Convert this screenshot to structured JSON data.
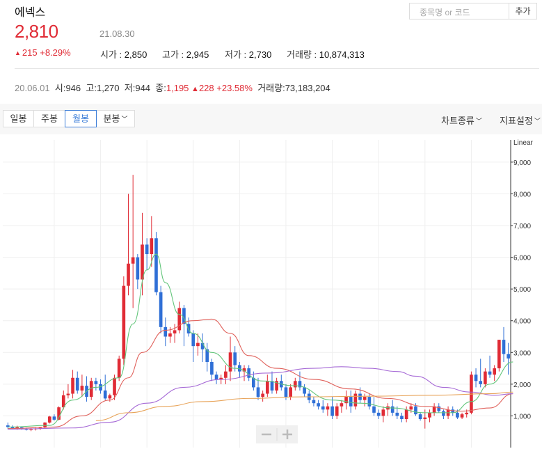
{
  "stock": {
    "name": "에넥스",
    "price": "2,810",
    "date": "21.08.30",
    "change": "215",
    "change_pct": "+8.29%",
    "stats": [
      {
        "label": "시가",
        "value": "2,850"
      },
      {
        "label": "고가",
        "value": "2,945"
      },
      {
        "label": "저가",
        "value": "2,730"
      },
      {
        "label": "거래량",
        "value": "10,874,313"
      }
    ]
  },
  "search": {
    "placeholder": "종목명 or 코드",
    "add_label": "추가"
  },
  "listing": {
    "date": "20.06.01",
    "open_label": "시",
    "open": "946",
    "high_label": "고",
    "high": "1,270",
    "low_label": "저",
    "low": "944",
    "close_label": "종",
    "close": "1,195",
    "change": "228",
    "change_pct": "+23.58%",
    "volume_label": "거래량",
    "volume": "73,183,204"
  },
  "toolbar": {
    "tabs": [
      "일봉",
      "주봉",
      "월봉",
      "분봉"
    ],
    "active_tab": "월봉",
    "chart_type_label": "차트종류",
    "indicator_label": "지표설정"
  },
  "colors": {
    "up": "#e02b35",
    "down": "#2f6fd6",
    "ma5": "#62c57a",
    "ma20": "#e0615b",
    "ma60": "#a66ad6",
    "ma120": "#e8a45a"
  },
  "chart_data": {
    "type": "candlestick",
    "scale_label": "Linear",
    "ylim": [
      0,
      9700
    ],
    "yticks": [
      "1,000",
      "2,000",
      "3,000",
      "4,000",
      "5,000",
      "6,000",
      "7,000",
      "8,000",
      "9,000"
    ],
    "ytick_values": [
      1000,
      2000,
      3000,
      4000,
      5000,
      6000,
      7000,
      8000,
      9000
    ],
    "candles": [
      [
        700,
        790,
        580,
        650
      ],
      [
        650,
        700,
        570,
        610
      ],
      [
        610,
        690,
        560,
        640
      ],
      [
        640,
        660,
        560,
        590
      ],
      [
        590,
        630,
        540,
        560
      ],
      [
        560,
        620,
        520,
        580
      ],
      [
        580,
        640,
        540,
        600
      ],
      [
        600,
        650,
        560,
        630
      ],
      [
        630,
        800,
        600,
        790
      ],
      [
        790,
        1000,
        760,
        980
      ],
      [
        980,
        1050,
        850,
        880
      ],
      [
        880,
        1300,
        860,
        1270
      ],
      [
        1270,
        1800,
        1200,
        1650
      ],
      [
        1650,
        2000,
        1550,
        1700
      ],
      [
        1700,
        2450,
        1550,
        2200
      ],
      [
        2200,
        2400,
        1700,
        1800
      ],
      [
        1800,
        2300,
        1600,
        1950
      ],
      [
        1950,
        2250,
        1450,
        1600
      ],
      [
        1600,
        2200,
        1500,
        2100
      ],
      [
        2100,
        2200,
        1800,
        2000
      ],
      [
        2000,
        2150,
        1700,
        1800
      ],
      [
        1800,
        2300,
        1500,
        1550
      ],
      [
        1550,
        1700,
        1450,
        1650
      ],
      [
        1650,
        2300,
        1500,
        2200
      ],
      [
        2200,
        2900,
        2100,
        2800
      ],
      [
        2800,
        5400,
        2600,
        5100
      ],
      [
        5100,
        8000,
        4800,
        5800
      ],
      [
        5800,
        8600,
        4400,
        6000
      ],
      [
        6000,
        6100,
        5000,
        5300
      ],
      [
        5300,
        7400,
        4800,
        6400
      ],
      [
        6400,
        6600,
        5600,
        6100
      ],
      [
        6100,
        7300,
        5700,
        6600
      ],
      [
        6600,
        6800,
        4800,
        4900
      ],
      [
        4900,
        5100,
        3600,
        3800
      ],
      [
        3800,
        4100,
        3200,
        3500
      ],
      [
        3500,
        3800,
        3300,
        3600
      ],
      [
        3600,
        3900,
        3300,
        3700
      ],
      [
        3700,
        4600,
        3600,
        4400
      ],
      [
        4400,
        4500,
        3200,
        3900
      ],
      [
        3900,
        4100,
        3500,
        3600
      ],
      [
        3600,
        3700,
        2700,
        3200
      ],
      [
        3200,
        3600,
        2900,
        3300
      ],
      [
        3300,
        3600,
        2700,
        3100
      ],
      [
        3100,
        3300,
        2400,
        2700
      ],
      [
        2700,
        2800,
        2100,
        2300
      ],
      [
        2300,
        2400,
        2000,
        2150
      ],
      [
        2150,
        2300,
        2000,
        2200
      ],
      [
        2200,
        2600,
        2000,
        2400
      ],
      [
        2400,
        3500,
        2100,
        3000
      ],
      [
        3000,
        3200,
        2400,
        2600
      ],
      [
        2600,
        2700,
        2200,
        2400
      ],
      [
        2400,
        2600,
        2100,
        2500
      ],
      [
        2500,
        2600,
        2100,
        2200
      ],
      [
        2200,
        2400,
        1800,
        1900
      ],
      [
        1900,
        2200,
        1500,
        1600
      ],
      [
        1600,
        1800,
        1450,
        1700
      ],
      [
        1700,
        2300,
        1600,
        2100
      ],
      [
        2100,
        2400,
        1700,
        1800
      ],
      [
        1800,
        2200,
        1700,
        2100
      ],
      [
        2100,
        2300,
        1800,
        1900
      ],
      [
        1900,
        2000,
        1500,
        1600
      ],
      [
        1600,
        2000,
        1500,
        1900
      ],
      [
        1900,
        2200,
        1800,
        2100
      ],
      [
        2100,
        2400,
        1800,
        1900
      ],
      [
        1900,
        2000,
        1600,
        1700
      ],
      [
        1700,
        1800,
        1400,
        1500
      ],
      [
        1500,
        1600,
        1300,
        1400
      ],
      [
        1400,
        1500,
        1200,
        1300
      ],
      [
        1300,
        1500,
        1100,
        1200
      ],
      [
        1200,
        1400,
        1000,
        1300
      ],
      [
        1300,
        1600,
        900,
        1000
      ],
      [
        1000,
        1400,
        900,
        1300
      ],
      [
        1300,
        1500,
        1100,
        1400
      ],
      [
        1400,
        1800,
        1200,
        1600
      ],
      [
        1600,
        1800,
        1100,
        1300
      ],
      [
        1300,
        1800,
        1200,
        1700
      ],
      [
        1700,
        1900,
        1400,
        1500
      ],
      [
        1500,
        1700,
        1300,
        1600
      ],
      [
        1600,
        1700,
        1200,
        1300
      ],
      [
        1300,
        1600,
        1000,
        1100
      ],
      [
        1100,
        1200,
        900,
        1000
      ],
      [
        1000,
        1300,
        800,
        1200
      ],
      [
        1200,
        1400,
        1000,
        1300
      ],
      [
        1300,
        1500,
        1000,
        1100
      ],
      [
        1100,
        1300,
        900,
        1000
      ],
      [
        1000,
        1100,
        800,
        900
      ],
      [
        900,
        1300,
        800,
        1200
      ],
      [
        1200,
        1400,
        1100,
        1300
      ],
      [
        1300,
        1400,
        1000,
        1050
      ],
      [
        1050,
        1100,
        850,
        900
      ],
      [
        900,
        1200,
        600,
        950
      ],
      [
        950,
        1200,
        800,
        1100
      ],
      [
        1100,
        1400,
        1000,
        1300
      ],
      [
        1300,
        1400,
        1100,
        1150
      ],
      [
        1150,
        1200,
        900,
        1000
      ],
      [
        1000,
        1300,
        900,
        1200
      ],
      [
        1200,
        1300,
        1000,
        1100
      ],
      [
        1100,
        1200,
        900,
        950
      ],
      [
        950,
        1100,
        900,
        1050
      ],
      [
        1050,
        1200,
        950,
        1100
      ],
      [
        1100,
        2400,
        1050,
        2300
      ],
      [
        2300,
        2500,
        1900,
        2100
      ],
      [
        2100,
        2800,
        1900,
        2000
      ],
      [
        2000,
        2500,
        1900,
        2400
      ],
      [
        2400,
        2900,
        2200,
        2300
      ],
      [
        2300,
        2600,
        2100,
        2500
      ],
      [
        2500,
        3400,
        2400,
        3400
      ],
      [
        3400,
        3800,
        2700,
        2950
      ],
      [
        2950,
        3300,
        2300,
        2810
      ]
    ],
    "moving_averages": [
      {
        "key": "ma5",
        "values": [
          [
            0,
            650
          ],
          [
            9,
            700
          ],
          [
            14,
            1500
          ],
          [
            19,
            1900
          ],
          [
            24,
            2200
          ],
          [
            27,
            3900
          ],
          [
            30,
            5600
          ],
          [
            32,
            6100
          ],
          [
            34,
            5200
          ],
          [
            37,
            4200
          ],
          [
            40,
            3600
          ],
          [
            44,
            3000
          ],
          [
            49,
            2500
          ],
          [
            55,
            2100
          ],
          [
            62,
            1950
          ],
          [
            70,
            1500
          ],
          [
            76,
            1400
          ],
          [
            83,
            1250
          ],
          [
            90,
            1100
          ],
          [
            96,
            1100
          ],
          [
            100,
            1450
          ],
          [
            104,
            2000
          ],
          [
            109,
            2700
          ]
        ]
      },
      {
        "key": "ma20",
        "values": [
          [
            0,
            600
          ],
          [
            10,
            650
          ],
          [
            16,
            1000
          ],
          [
            22,
            1500
          ],
          [
            26,
            2200
          ],
          [
            29,
            3000
          ],
          [
            34,
            3700
          ],
          [
            40,
            4000
          ],
          [
            44,
            4050
          ],
          [
            48,
            3600
          ],
          [
            52,
            2900
          ],
          [
            58,
            2500
          ],
          [
            66,
            2150
          ],
          [
            74,
            1850
          ],
          [
            82,
            1550
          ],
          [
            90,
            1300
          ],
          [
            98,
            1150
          ],
          [
            104,
            1250
          ],
          [
            109,
            1700
          ]
        ]
      },
      {
        "key": "ma60",
        "values": [
          [
            0,
            580
          ],
          [
            14,
            620
          ],
          [
            22,
            800
          ],
          [
            30,
            1400
          ],
          [
            38,
            1900
          ],
          [
            46,
            2150
          ],
          [
            56,
            2350
          ],
          [
            66,
            2500
          ],
          [
            72,
            2550
          ],
          [
            78,
            2500
          ],
          [
            84,
            2400
          ],
          [
            88,
            2250
          ],
          [
            94,
            1900
          ],
          [
            100,
            1750
          ],
          [
            105,
            1650
          ],
          [
            109,
            1700
          ]
        ]
      },
      {
        "key": "ma120",
        "values": [
          [
            19,
            850
          ],
          [
            26,
            1100
          ],
          [
            34,
            1300
          ],
          [
            42,
            1450
          ],
          [
            52,
            1550
          ],
          [
            64,
            1600
          ],
          [
            78,
            1620
          ],
          [
            92,
            1650
          ],
          [
            104,
            1700
          ],
          [
            109,
            1750
          ]
        ]
      }
    ]
  }
}
